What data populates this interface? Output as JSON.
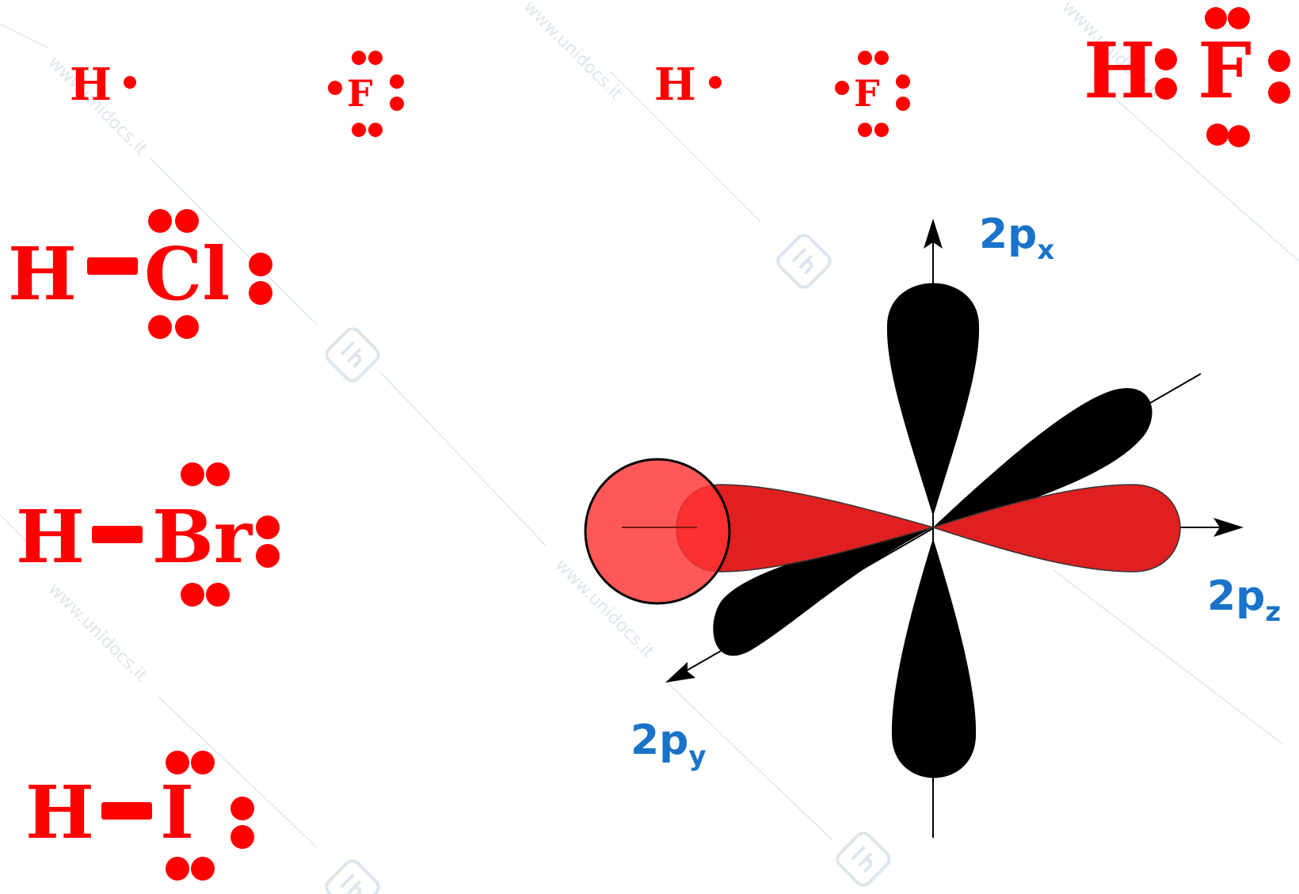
{
  "colors": {
    "dots": "#ff0000",
    "text": "#ff0000",
    "orbital_red": "#e02020",
    "orbital_black": "#000000",
    "h_orbital": "#ff5555",
    "axis_label": "#1a73c8",
    "watermark": "#d9e4ec"
  },
  "lewis": {
    "h1": "H",
    "f1": "F",
    "h2": "H",
    "f2": "F",
    "hf_h": "H",
    "hf_f": "F",
    "hcl_h": "H",
    "hcl_x": "Cl",
    "hbr_h": "H",
    "hbr_x": "Br",
    "hi_h": "H",
    "hi_x": "I"
  },
  "orbital": {
    "px_main": "2p",
    "px_sub": "x",
    "py_main": "2p",
    "py_sub": "y",
    "pz_main": "2p",
    "pz_sub": "z"
  },
  "watermark": {
    "text": "www.unidocs.it",
    "logo_icon": "unidocs-logo-icon"
  }
}
